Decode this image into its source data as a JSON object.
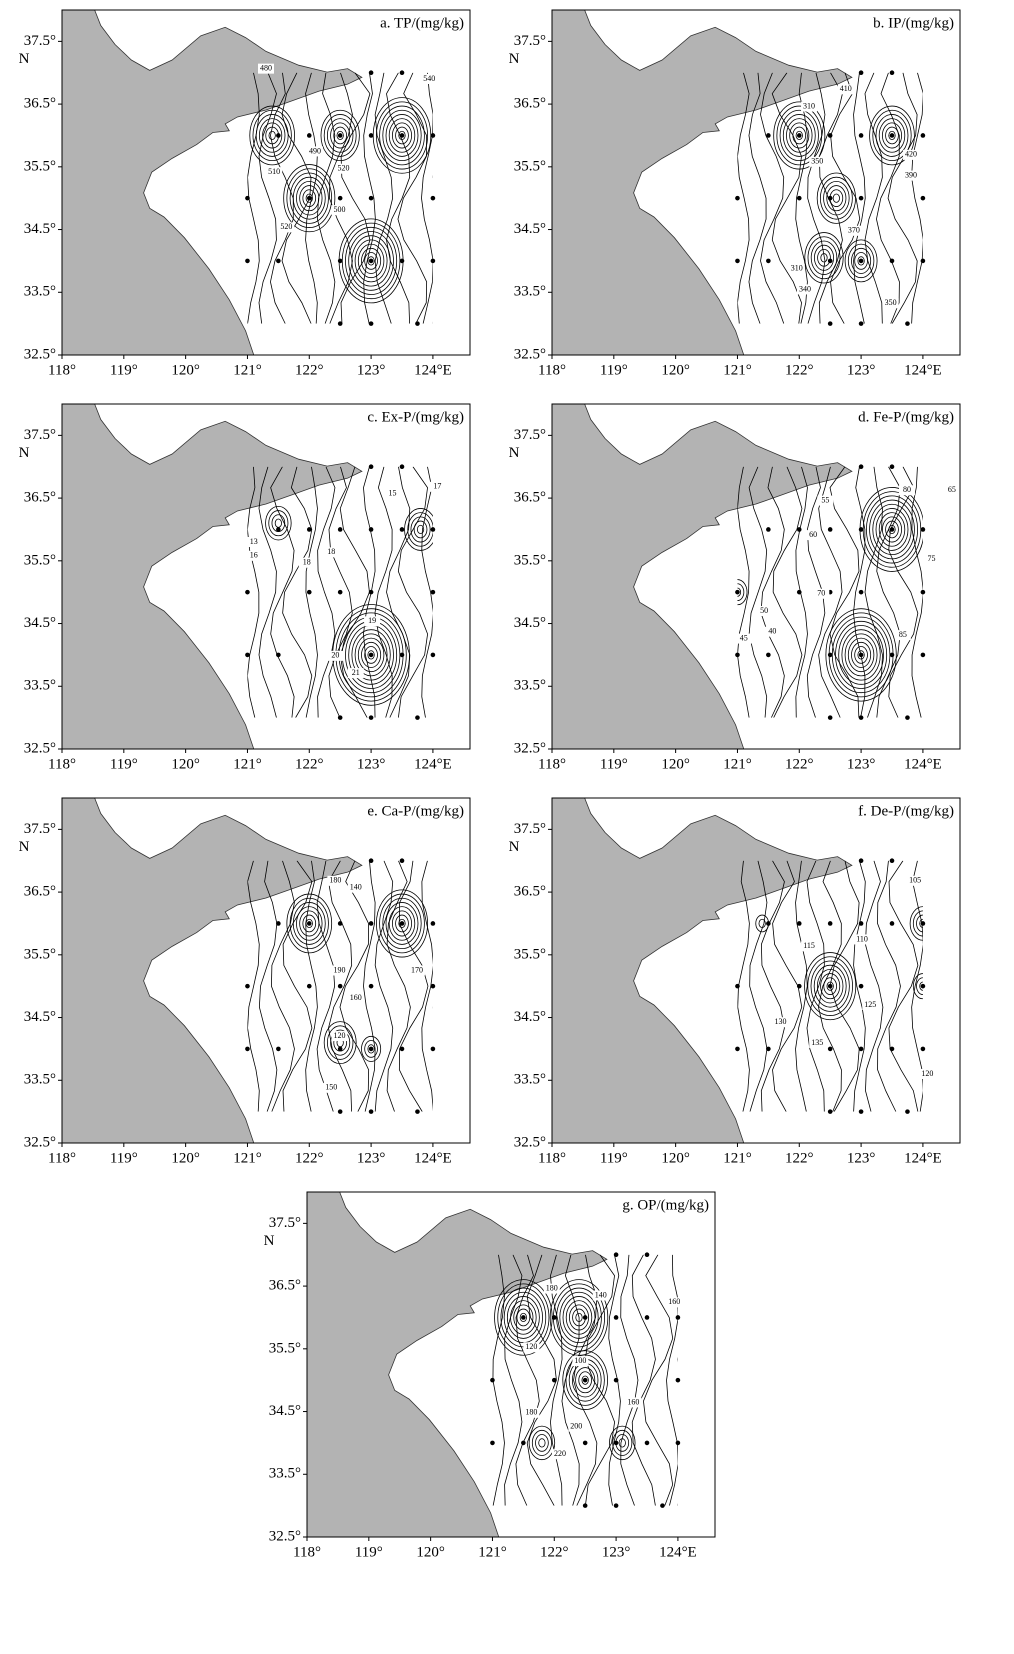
{
  "axes": {
    "xlim": [
      118,
      124.6
    ],
    "ylim": [
      32.5,
      38
    ],
    "xticks": [
      {
        "value": 118,
        "label": "118°"
      },
      {
        "value": 119,
        "label": "119°"
      },
      {
        "value": 120,
        "label": "120°"
      },
      {
        "value": 121,
        "label": "121°"
      },
      {
        "value": 122,
        "label": "122°"
      },
      {
        "value": 123,
        "label": "123°"
      },
      {
        "value": 124,
        "label": "124°E"
      }
    ],
    "yticks": [
      {
        "value": 32.5,
        "label": "32.5°"
      },
      {
        "value": 33.5,
        "label": "33.5°"
      },
      {
        "value": 34.5,
        "label": "34.5°"
      },
      {
        "value": 35.5,
        "label": "35.5°"
      },
      {
        "value": 36.5,
        "label": "36.5°"
      },
      {
        "value": 37.5,
        "label": "37.5°"
      }
    ],
    "lat_label": "N"
  },
  "panels": [
    {
      "title": "a. TP/(mg/kg)",
      "contour_labels": [
        "480",
        "540",
        "490",
        "520",
        "500",
        "520",
        "510"
      ]
    },
    {
      "title": "b. IP/(mg/kg)",
      "contour_labels": [
        "310",
        "350",
        "410",
        "420",
        "390",
        "370",
        "310",
        "340",
        "350"
      ]
    },
    {
      "title": "c. Ex-P/(mg/kg)",
      "contour_labels": [
        "15",
        "17",
        "13",
        "16",
        "18",
        "18",
        "19",
        "20",
        "21"
      ]
    },
    {
      "title": "d. Fe-P/(mg/kg)",
      "contour_labels": [
        "80",
        "65",
        "55",
        "60",
        "70",
        "75",
        "85",
        "50",
        "45",
        "40"
      ]
    },
    {
      "title": "e. Ca-P/(mg/kg)",
      "contour_labels": [
        "180",
        "140",
        "190",
        "170",
        "160",
        "120",
        "150"
      ]
    },
    {
      "title": "f. De-P/(mg/kg)",
      "contour_labels": [
        "105",
        "115",
        "110",
        "125",
        "130",
        "135",
        "120"
      ]
    },
    {
      "title": "g. OP/(mg/kg)",
      "contour_labels": [
        "180",
        "140",
        "160",
        "120",
        "100",
        "180",
        "160",
        "200",
        "220"
      ]
    }
  ]
}
